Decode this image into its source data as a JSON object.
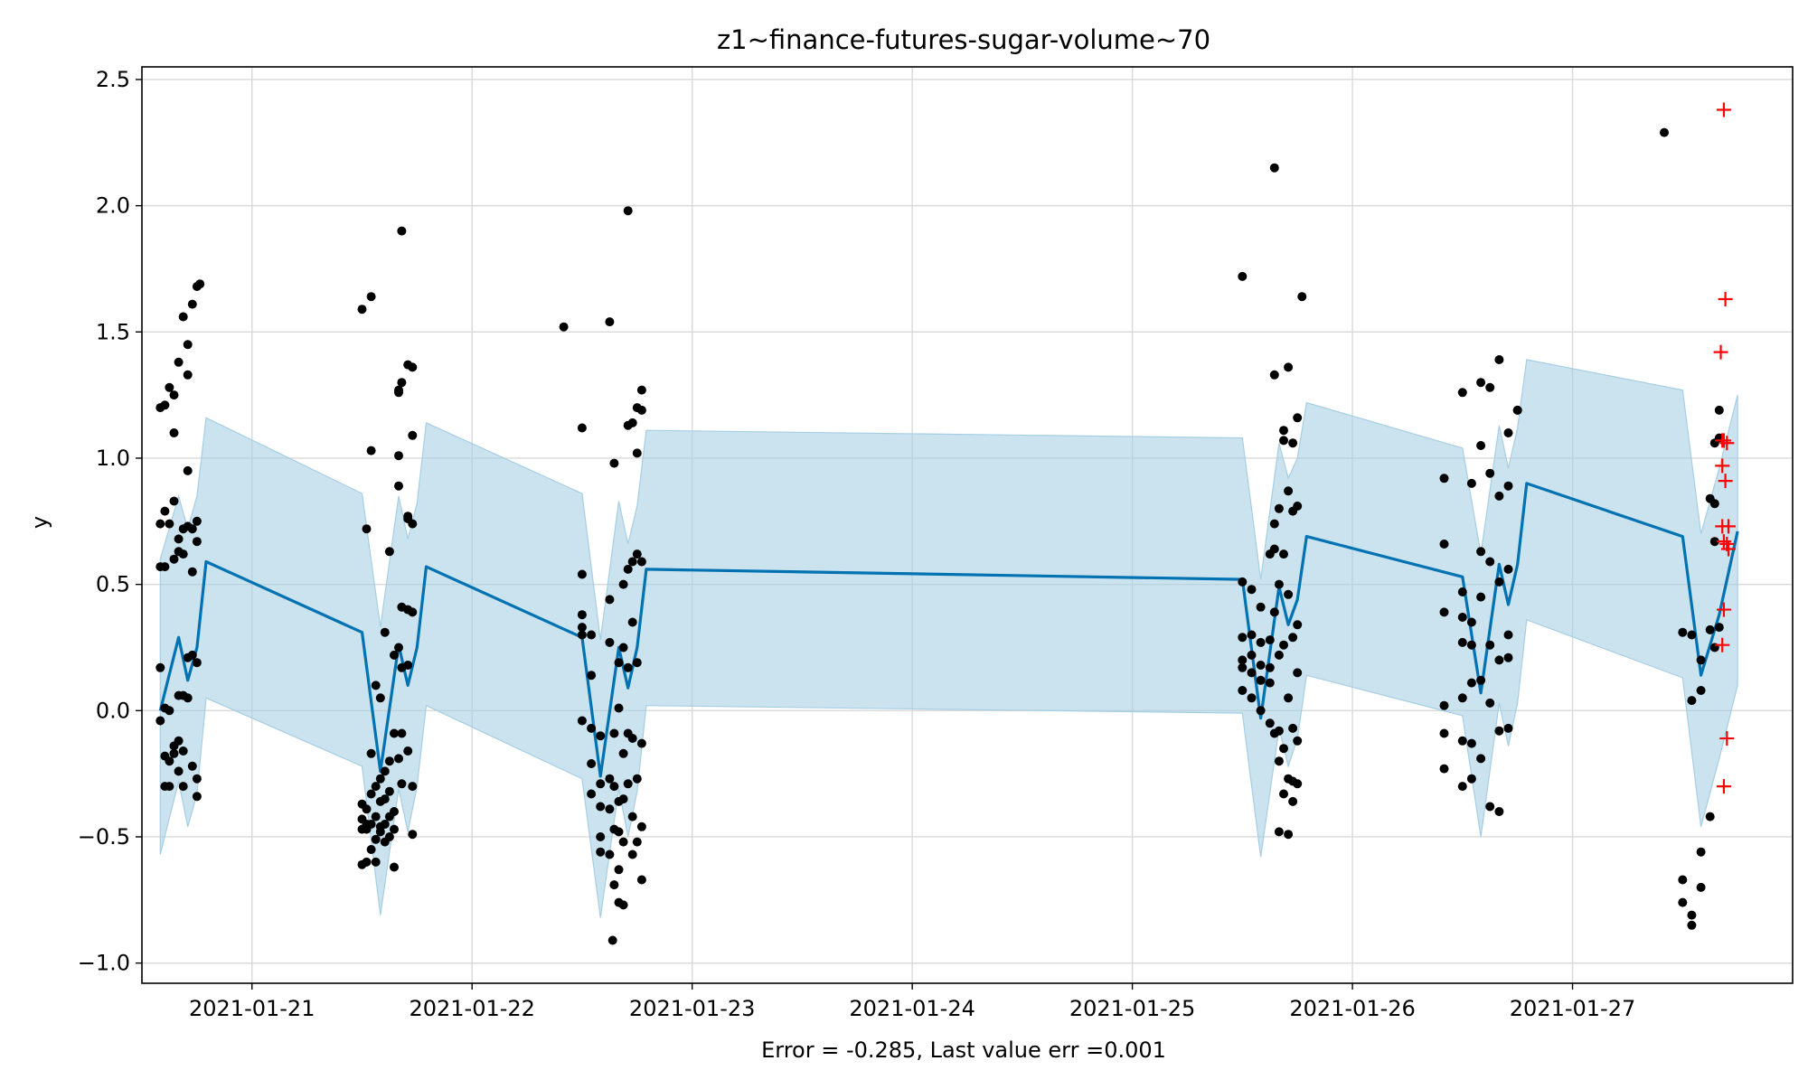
{
  "chart_data": {
    "type": "scatter",
    "title": "z1~finance-futures-sugar-volume~70",
    "xlabel": "Error = -0.285, Last value err =0.001",
    "ylabel": "y",
    "xlim": [
      "2021-01-20 12:00",
      "2021-01-28 00:00"
    ],
    "ylim": [
      -1.08,
      2.55
    ],
    "grid": true,
    "xticks": [
      "2021-01-21",
      "2021-01-22",
      "2021-01-23",
      "2021-01-24",
      "2021-01-25",
      "2021-01-26",
      "2021-01-27"
    ],
    "yticks": [
      "−1.0",
      "−0.5",
      "0.0",
      "0.5",
      "1.0",
      "1.5",
      "2.0",
      "2.5"
    ],
    "colors": {
      "forecast_line": "#0072b2",
      "uncertainty_band": "#a6cee3",
      "observed_points": "#000000",
      "future_points": "#ff0000",
      "grid": "#d9d9d9"
    },
    "forecast": {
      "x": [
        "2021-01-20 14:00",
        "2021-01-20 16:00",
        "2021-01-20 17:00",
        "2021-01-20 18:00",
        "2021-01-20 19:00",
        "2021-01-21 12:00",
        "2021-01-21 14:00",
        "2021-01-21 16:00",
        "2021-01-21 17:00",
        "2021-01-21 18:00",
        "2021-01-21 19:00",
        "2021-01-22 12:00",
        "2021-01-22 14:00",
        "2021-01-22 16:00",
        "2021-01-22 17:00",
        "2021-01-22 18:00",
        "2021-01-22 19:00",
        "2021-01-25 12:00",
        "2021-01-25 14:00",
        "2021-01-25 16:00",
        "2021-01-25 17:00",
        "2021-01-25 18:00",
        "2021-01-25 19:00",
        "2021-01-26 12:00",
        "2021-01-26 14:00",
        "2021-01-26 16:00",
        "2021-01-26 17:00",
        "2021-01-26 18:00",
        "2021-01-26 19:00",
        "2021-01-27 12:00",
        "2021-01-27 14:00",
        "2021-01-27 16:00",
        "2021-01-27 18:00"
      ],
      "yhat": [
        0.0,
        0.29,
        0.12,
        0.25,
        0.59,
        0.31,
        -0.24,
        0.26,
        0.1,
        0.25,
        0.57,
        0.29,
        -0.26,
        0.25,
        0.09,
        0.25,
        0.56,
        0.52,
        -0.03,
        0.49,
        0.34,
        0.44,
        0.69,
        0.53,
        0.07,
        0.58,
        0.42,
        0.58,
        0.9,
        0.69,
        0.14,
        0.38,
        0.71
      ],
      "upper": [
        0.6,
        0.85,
        0.72,
        0.85,
        1.16,
        0.86,
        0.33,
        0.85,
        0.68,
        0.82,
        1.14,
        0.86,
        0.28,
        0.83,
        0.66,
        0.81,
        1.11,
        1.08,
        0.52,
        1.06,
        0.92,
        1.0,
        1.22,
        1.04,
        0.62,
        1.13,
        0.96,
        1.12,
        1.39,
        1.27,
        0.7,
        0.96,
        1.25
      ],
      "lower": [
        -0.57,
        -0.28,
        -0.46,
        -0.33,
        0.05,
        -0.22,
        -0.81,
        -0.31,
        -0.48,
        -0.3,
        0.02,
        -0.27,
        -0.82,
        -0.31,
        -0.5,
        -0.32,
        0.02,
        -0.01,
        -0.58,
        -0.07,
        -0.22,
        -0.11,
        0.14,
        -0.02,
        -0.5,
        0.03,
        -0.14,
        0.03,
        0.36,
        0.13,
        -0.46,
        -0.19,
        0.1
      ]
    },
    "observed": [
      {
        "x": "2021-01-20 14:00",
        "y": [
          1.2,
          0.74,
          0.57,
          0.17,
          -0.04
        ]
      },
      {
        "x": "2021-01-20 14:30",
        "y": [
          1.21,
          0.79,
          0.57,
          0.01,
          -0.18,
          -0.3
        ]
      },
      {
        "x": "2021-01-20 15:00",
        "y": [
          1.28,
          0.74,
          0.0,
          -0.2,
          -0.3
        ]
      },
      {
        "x": "2021-01-20 15:30",
        "y": [
          1.25,
          1.1,
          0.6,
          0.83,
          -0.17,
          -0.14
        ]
      },
      {
        "x": "2021-01-20 16:00",
        "y": [
          1.38,
          0.68,
          0.63,
          0.06,
          -0.12,
          -0.24
        ]
      },
      {
        "x": "2021-01-20 16:30",
        "y": [
          1.56,
          0.72,
          0.62,
          0.06,
          -0.16,
          -0.3
        ]
      },
      {
        "x": "2021-01-20 17:00",
        "y": [
          1.45,
          1.33,
          0.95,
          0.73,
          0.21,
          0.05
        ]
      },
      {
        "x": "2021-01-20 17:30",
        "y": [
          1.61,
          0.72,
          0.55,
          0.22,
          -0.22
        ]
      },
      {
        "x": "2021-01-20 18:00",
        "y": [
          1.68,
          0.75,
          0.67,
          0.19,
          -0.27,
          -0.34
        ]
      },
      {
        "x": "2021-01-20 18:20",
        "y": [
          1.69
        ]
      },
      {
        "x": "2021-01-21 12:00",
        "y": [
          1.59,
          -0.47,
          -0.61,
          -0.43,
          -0.37
        ]
      },
      {
        "x": "2021-01-21 12:30",
        "y": [
          0.72,
          -0.47,
          -0.6,
          -0.39,
          -0.45
        ]
      },
      {
        "x": "2021-01-21 13:00",
        "y": [
          1.64,
          1.03,
          -0.17,
          -0.33,
          -0.45,
          -0.55
        ]
      },
      {
        "x": "2021-01-21 13:30",
        "y": [
          0.1,
          -0.3,
          -0.42,
          -0.51,
          -0.6
        ]
      },
      {
        "x": "2021-01-21 14:00",
        "y": [
          0.05,
          -0.27,
          -0.36,
          -0.46,
          -0.48
        ]
      },
      {
        "x": "2021-01-21 14:30",
        "y": [
          0.31,
          -0.24,
          -0.35,
          -0.45,
          -0.52
        ]
      },
      {
        "x": "2021-01-21 15:00",
        "y": [
          0.63,
          -0.2,
          -0.32,
          -0.42,
          -0.5
        ]
      },
      {
        "x": "2021-01-21 15:30",
        "y": [
          0.22,
          -0.09,
          -0.4,
          -0.47,
          -0.62
        ]
      },
      {
        "x": "2021-01-21 16:00",
        "y": [
          1.26,
          1.27,
          1.01,
          0.89,
          0.25,
          -0.19
        ]
      },
      {
        "x": "2021-01-21 16:20",
        "y": [
          1.9,
          1.3,
          0.41,
          0.17,
          -0.09,
          -0.29
        ]
      },
      {
        "x": "2021-01-21 17:00",
        "y": [
          1.37,
          0.77,
          0.76,
          0.4,
          0.18,
          -0.16
        ]
      },
      {
        "x": "2021-01-21 17:30",
        "y": [
          1.36,
          1.09,
          0.74,
          0.39,
          -0.3,
          -0.49
        ]
      },
      {
        "x": "2021-01-22 10:00",
        "y": [
          1.52
        ]
      },
      {
        "x": "2021-01-22 12:00",
        "y": [
          1.12,
          0.54,
          0.38,
          0.33,
          0.3,
          -0.04
        ]
      },
      {
        "x": "2021-01-22 13:00",
        "y": [
          0.3,
          0.14,
          -0.07,
          -0.21,
          -0.33
        ]
      },
      {
        "x": "2021-01-22 14:00",
        "y": [
          -0.1,
          -0.29,
          -0.38,
          -0.5,
          -0.56
        ]
      },
      {
        "x": "2021-01-22 15:00",
        "y": [
          1.54,
          0.44,
          0.27,
          -0.27,
          -0.39,
          -0.57
        ]
      },
      {
        "x": "2021-01-22 15:30",
        "y": [
          0.98,
          -0.09,
          -0.3,
          -0.47,
          -0.69
        ]
      },
      {
        "x": "2021-01-22 16:00",
        "y": [
          0.19,
          0.01,
          -0.36,
          -0.48,
          -0.63,
          -0.76
        ]
      },
      {
        "x": "2021-01-22 16:30",
        "y": [
          0.5,
          0.25,
          -0.17,
          -0.35,
          -0.52,
          -0.77
        ]
      },
      {
        "x": "2021-01-22 17:00",
        "y": [
          1.98,
          1.13,
          0.56,
          0.17,
          -0.09,
          -0.29
        ]
      },
      {
        "x": "2021-01-22 17:30",
        "y": [
          1.14,
          0.59,
          0.35,
          -0.11,
          -0.42,
          -0.57
        ]
      },
      {
        "x": "2021-01-22 18:00",
        "y": [
          1.2,
          1.02,
          0.62,
          0.19,
          -0.27,
          -0.52
        ]
      },
      {
        "x": "2021-01-22 18:30",
        "y": [
          1.27,
          1.19,
          0.59,
          -0.13,
          -0.46,
          -0.67
        ]
      },
      {
        "x": "2021-01-22 15:20",
        "y": [
          -0.91
        ]
      },
      {
        "x": "2021-01-25 12:00",
        "y": [
          1.72,
          0.51,
          0.29,
          0.2,
          0.17,
          0.08
        ]
      },
      {
        "x": "2021-01-25 13:00",
        "y": [
          0.48,
          0.3,
          0.22,
          0.15,
          0.05
        ]
      },
      {
        "x": "2021-01-25 14:00",
        "y": [
          0.41,
          0.27,
          0.18,
          0.12,
          0.0
        ]
      },
      {
        "x": "2021-01-25 15:00",
        "y": [
          0.62,
          0.28,
          0.17,
          0.11,
          -0.05
        ]
      },
      {
        "x": "2021-01-25 15:30",
        "y": [
          2.15,
          1.33,
          0.74,
          0.64,
          0.39,
          -0.09
        ]
      },
      {
        "x": "2021-01-25 16:00",
        "y": [
          0.8,
          0.5,
          0.22,
          -0.08,
          -0.2,
          -0.48
        ]
      },
      {
        "x": "2021-01-25 16:30",
        "y": [
          1.11,
          1.07,
          0.62,
          0.26,
          -0.15,
          -0.33
        ]
      },
      {
        "x": "2021-01-25 17:00",
        "y": [
          1.36,
          0.87,
          0.46,
          0.05,
          -0.27,
          -0.49
        ]
      },
      {
        "x": "2021-01-25 17:30",
        "y": [
          1.06,
          0.79,
          0.29,
          -0.07,
          -0.28,
          -0.36
        ]
      },
      {
        "x": "2021-01-25 18:00",
        "y": [
          1.16,
          0.81,
          0.34,
          0.15,
          -0.12,
          -0.29
        ]
      },
      {
        "x": "2021-01-25 18:30",
        "y": [
          1.64
        ]
      },
      {
        "x": "2021-01-26 10:00",
        "y": [
          0.92,
          0.66,
          0.39,
          0.02,
          -0.09,
          -0.23
        ]
      },
      {
        "x": "2021-01-26 12:00",
        "y": [
          1.26,
          0.47,
          0.37,
          0.27,
          0.05,
          -0.12,
          -0.3
        ]
      },
      {
        "x": "2021-01-26 13:00",
        "y": [
          0.9,
          0.35,
          0.26,
          0.11,
          -0.13,
          -0.27
        ]
      },
      {
        "x": "2021-01-26 14:00",
        "y": [
          1.3,
          1.05,
          0.63,
          0.45,
          0.12,
          -0.19
        ]
      },
      {
        "x": "2021-01-26 15:00",
        "y": [
          1.28,
          0.94,
          0.59,
          0.26,
          0.03,
          -0.38
        ]
      },
      {
        "x": "2021-01-26 16:00",
        "y": [
          1.39,
          0.85,
          0.51,
          0.2,
          -0.08,
          -0.4
        ]
      },
      {
        "x": "2021-01-26 17:00",
        "y": [
          1.1,
          0.89,
          0.56,
          0.3,
          0.21,
          -0.07
        ]
      },
      {
        "x": "2021-01-26 18:00",
        "y": [
          1.19,
          1.19
        ]
      },
      {
        "x": "2021-01-27 10:00",
        "y": [
          2.29
        ]
      },
      {
        "x": "2021-01-27 12:00",
        "y": [
          0.31,
          -0.67,
          -0.76
        ]
      },
      {
        "x": "2021-01-27 13:00",
        "y": [
          0.3,
          0.04,
          -0.85,
          -0.81
        ]
      },
      {
        "x": "2021-01-27 14:00",
        "y": [
          0.2,
          0.08,
          -0.7,
          -0.56
        ]
      },
      {
        "x": "2021-01-27 15:00",
        "y": [
          0.84,
          0.32,
          -0.42
        ]
      },
      {
        "x": "2021-01-27 15:30",
        "y": [
          1.06,
          0.82,
          0.67,
          0.25
        ]
      },
      {
        "x": "2021-01-27 16:00",
        "y": [
          1.19,
          1.08,
          0.33
        ]
      }
    ],
    "future": {
      "x": [
        "2021-01-27 16:30",
        "2021-01-27 16:40",
        "2021-01-27 16:10",
        "2021-01-27 16:30",
        "2021-01-27 16:20",
        "2021-01-27 16:50",
        "2021-01-27 16:20",
        "2021-01-27 16:40",
        "2021-01-27 17:00",
        "2021-01-27 16:20",
        "2021-01-27 16:30",
        "2021-01-27 16:50",
        "2021-01-27 17:00",
        "2021-01-27 16:30",
        "2021-01-27 16:20",
        "2021-01-27 16:50",
        "2021-01-27 16:30"
      ],
      "y": [
        2.38,
        1.63,
        1.42,
        1.07,
        1.07,
        1.06,
        0.97,
        0.91,
        0.73,
        0.73,
        0.67,
        0.66,
        0.64,
        0.4,
        0.26,
        -0.11,
        -0.3
      ]
    }
  }
}
